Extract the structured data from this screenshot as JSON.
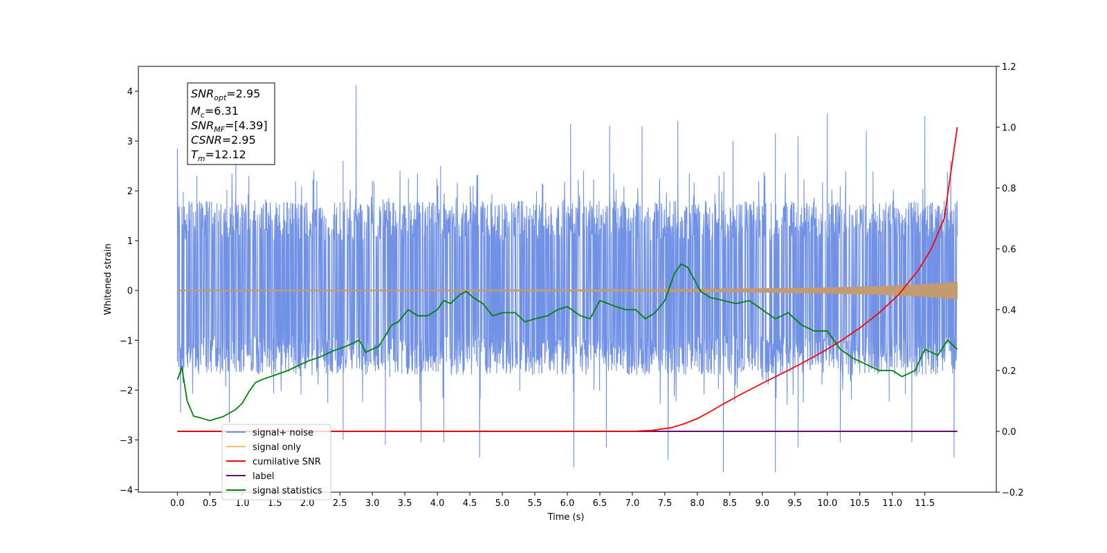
{
  "chart_data": {
    "type": "line",
    "xlabel": "Time (s)",
    "ylabel": "Whitened strain",
    "xlim": [
      -0.6,
      12.6
    ],
    "ylim": [
      -4.05,
      4.5
    ],
    "y2lim": [
      -0.2,
      1.2
    ],
    "x_ticks": [
      "0.0",
      "0.5",
      "1.0",
      "1.5",
      "2.0",
      "2.5",
      "3.0",
      "3.5",
      "4.0",
      "4.5",
      "5.0",
      "5.5",
      "6.0",
      "6.5",
      "7.0",
      "7.5",
      "8.0",
      "8.5",
      "9.0",
      "9.5",
      "10.0",
      "10.5",
      "11.0",
      "11.5"
    ],
    "y_ticks": [
      "4",
      "3",
      "2",
      "1",
      "0",
      "−1",
      "−2",
      "−3",
      "−4"
    ],
    "y_tick_values": [
      4,
      3,
      2,
      1,
      0,
      -1,
      -2,
      -3,
      -4
    ],
    "y2_ticks": [
      "1.2",
      "1.0",
      "0.8",
      "0.6",
      "0.4",
      "0.2",
      "0.0",
      "−0.2"
    ],
    "y2_tick_values": [
      1.2,
      1.0,
      0.8,
      0.6,
      0.4,
      0.2,
      0.0,
      -0.2
    ],
    "annotation": {
      "snr_opt": {
        "label": "SNR",
        "sub": "opt",
        "value": "=2.95"
      },
      "mc": {
        "label": "M",
        "sub": "c",
        "value": "=6.31"
      },
      "snr_mf": {
        "label": "SNR",
        "sub": "MF",
        "value": "=[4.39]"
      },
      "csnr": {
        "label": "CSNR",
        "value": "=2.95"
      },
      "tm": {
        "label": "T",
        "sub": "m",
        "value": "=12.12"
      }
    },
    "legend": {
      "placement": "lower-left",
      "entries": [
        {
          "label": "signal+ noise",
          "color": "#6f8de8"
        },
        {
          "label": "signal only",
          "color": "#f7be6a"
        },
        {
          "label": "cumilative SNR",
          "color": "#ff0000"
        },
        {
          "label": "label",
          "color": "#6a0d6a"
        },
        {
          "label": "signal statistics",
          "color": "#008000"
        }
      ]
    },
    "series": [
      {
        "name": "signal+ noise",
        "axis": "left",
        "color": "#7191e6",
        "x_range": [
          0.0,
          12.0
        ],
        "envelope_typical": [
          -1.7,
          1.8
        ],
        "peaks": [
          [
            0.0,
            2.85
          ],
          [
            0.3,
            2.3
          ],
          [
            0.9,
            2.55
          ],
          [
            1.1,
            2.3
          ],
          [
            2.1,
            2.4
          ],
          [
            2.55,
            2.6
          ],
          [
            2.75,
            4.12
          ],
          [
            3.0,
            2.2
          ],
          [
            4.05,
            2.5
          ],
          [
            4.55,
            2.1
          ],
          [
            6.05,
            3.35
          ],
          [
            6.25,
            2.4
          ],
          [
            6.65,
            3.3
          ],
          [
            7.15,
            3.3
          ],
          [
            7.7,
            3.4
          ],
          [
            8.55,
            3.0
          ],
          [
            9.2,
            3.15
          ],
          [
            9.55,
            3.1
          ],
          [
            10.0,
            3.55
          ],
          [
            10.6,
            3.2
          ],
          [
            11.5,
            3.5
          ],
          [
            11.9,
            2.6
          ]
        ],
        "troughs": [
          [
            0.05,
            -2.45
          ],
          [
            0.8,
            -2.65
          ],
          [
            2.55,
            -3.0
          ],
          [
            3.2,
            -3.1
          ],
          [
            3.75,
            -3.05
          ],
          [
            4.1,
            -3.05
          ],
          [
            4.65,
            -3.35
          ],
          [
            6.1,
            -3.55
          ],
          [
            6.6,
            -3.15
          ],
          [
            7.55,
            -3.4
          ],
          [
            8.4,
            -3.65
          ],
          [
            9.2,
            -3.65
          ],
          [
            9.55,
            -3.15
          ],
          [
            10.2,
            -3.05
          ],
          [
            11.3,
            -3.05
          ],
          [
            11.95,
            -3.35
          ]
        ]
      },
      {
        "name": "signal only",
        "axis": "left",
        "color": "#c39b70",
        "x": [
          0,
          1,
          2,
          3,
          4,
          5,
          6,
          7,
          7.5,
          8,
          8.5,
          9,
          9.5,
          10,
          10.5,
          11,
          11.5,
          12
        ],
        "amplitude": [
          0.01,
          0.01,
          0.01,
          0.01,
          0.01,
          0.012,
          0.014,
          0.018,
          0.02,
          0.025,
          0.03,
          0.038,
          0.045,
          0.055,
          0.07,
          0.09,
          0.12,
          0.17
        ]
      },
      {
        "name": "cumilative SNR",
        "axis": "right",
        "color": "#ff0000",
        "x": [
          0,
          7.0,
          7.3,
          7.6,
          7.8,
          8.0,
          8.2,
          8.4,
          8.7,
          9.0,
          9.3,
          9.6,
          9.9,
          10.2,
          10.5,
          10.8,
          11.1,
          11.4,
          11.6,
          11.8,
          12.0
        ],
        "y": [
          0,
          0,
          0.003,
          0.012,
          0.025,
          0.042,
          0.065,
          0.09,
          0.125,
          0.158,
          0.19,
          0.223,
          0.258,
          0.296,
          0.34,
          0.39,
          0.45,
          0.53,
          0.6,
          0.7,
          1.0
        ]
      },
      {
        "name": "label",
        "axis": "right",
        "color": "#6a0d6a",
        "x": [
          0,
          12.0
        ],
        "y": [
          0,
          0
        ]
      },
      {
        "name": "signal statistics",
        "axis": "right",
        "color": "#008000",
        "x": [
          0.0,
          0.07,
          0.15,
          0.25,
          0.35,
          0.5,
          0.6,
          0.7,
          0.8,
          0.9,
          1.0,
          1.1,
          1.2,
          1.3,
          1.5,
          1.7,
          1.9,
          2.0,
          2.2,
          2.4,
          2.6,
          2.8,
          2.9,
          3.1,
          3.3,
          3.4,
          3.55,
          3.7,
          3.85,
          4.0,
          4.1,
          4.2,
          4.35,
          4.45,
          4.55,
          4.7,
          4.85,
          5.0,
          5.2,
          5.35,
          5.5,
          5.7,
          5.85,
          6.0,
          6.2,
          6.35,
          6.5,
          6.75,
          6.9,
          7.05,
          7.2,
          7.35,
          7.5,
          7.65,
          7.75,
          7.85,
          7.95,
          8.05,
          8.2,
          8.4,
          8.6,
          8.8,
          9.0,
          9.2,
          9.4,
          9.6,
          9.8,
          10.0,
          10.2,
          10.4,
          10.6,
          10.8,
          11.0,
          11.15,
          11.35,
          11.5,
          11.7,
          11.85,
          12.0
        ],
        "y": [
          0.17,
          0.21,
          0.1,
          0.05,
          0.045,
          0.035,
          0.042,
          0.048,
          0.06,
          0.072,
          0.093,
          0.13,
          0.16,
          0.17,
          0.185,
          0.2,
          0.22,
          0.23,
          0.245,
          0.265,
          0.28,
          0.3,
          0.26,
          0.28,
          0.35,
          0.36,
          0.4,
          0.38,
          0.38,
          0.4,
          0.43,
          0.42,
          0.45,
          0.46,
          0.44,
          0.42,
          0.38,
          0.39,
          0.39,
          0.36,
          0.37,
          0.38,
          0.4,
          0.41,
          0.38,
          0.37,
          0.43,
          0.41,
          0.4,
          0.4,
          0.37,
          0.39,
          0.43,
          0.52,
          0.55,
          0.54,
          0.5,
          0.46,
          0.44,
          0.43,
          0.42,
          0.43,
          0.4,
          0.37,
          0.39,
          0.35,
          0.33,
          0.33,
          0.27,
          0.24,
          0.22,
          0.2,
          0.2,
          0.18,
          0.2,
          0.27,
          0.25,
          0.3,
          0.27
        ]
      }
    ]
  }
}
